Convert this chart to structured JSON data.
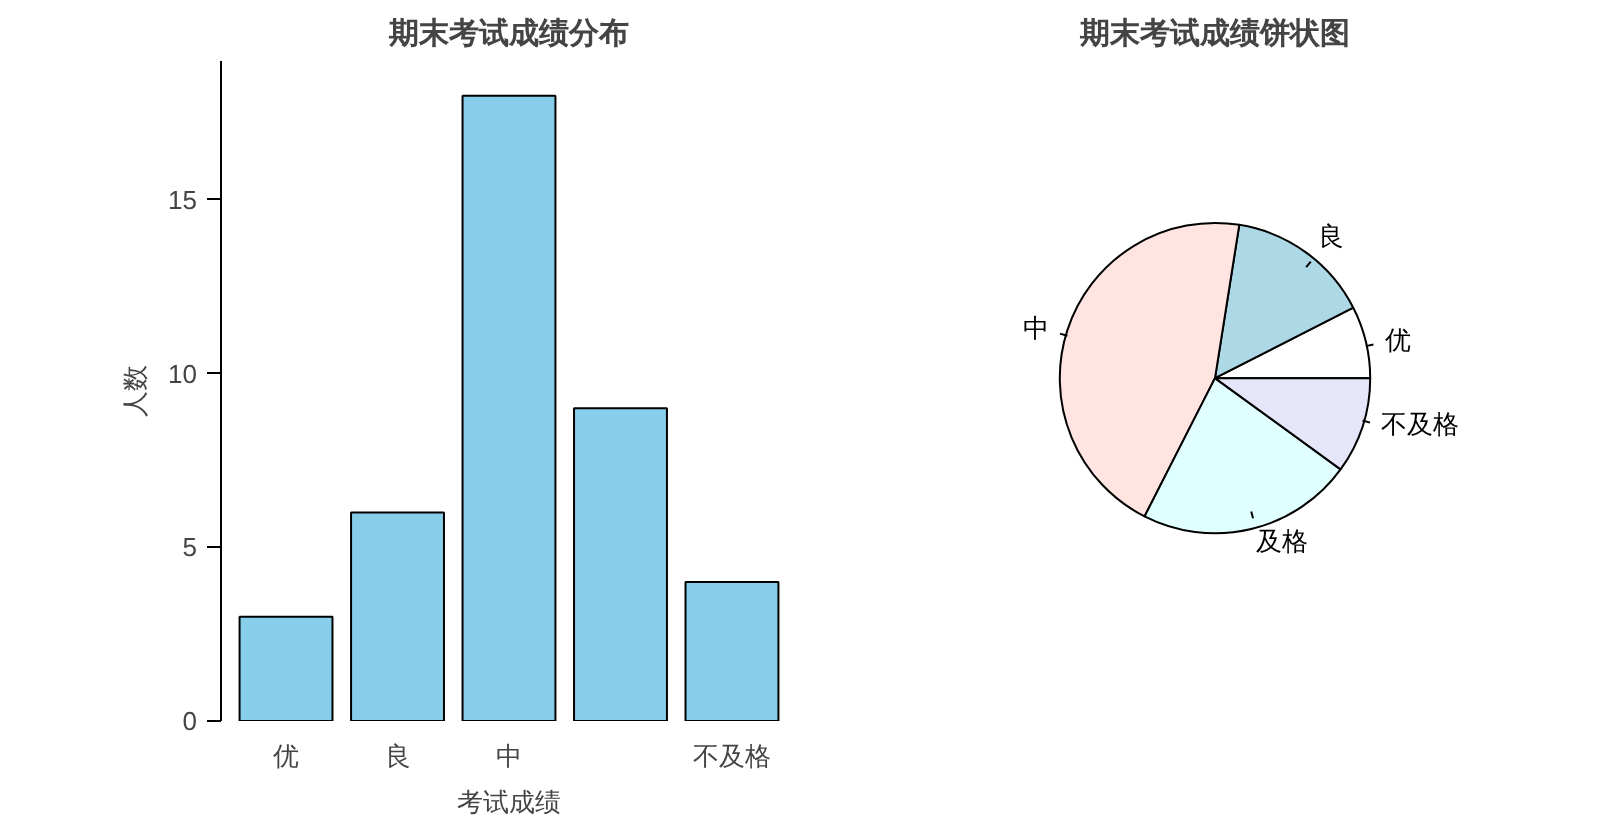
{
  "chart_data": [
    {
      "type": "bar",
      "title": "期末考试成绩分布",
      "xlabel": "考试成绩",
      "ylabel": "人数",
      "categories": [
        "优",
        "良",
        "中",
        null,
        "不及格"
      ],
      "values": [
        3,
        6,
        18,
        9,
        4
      ],
      "color": "#87ceeb",
      "ylim": [
        0,
        19
      ],
      "yticks": [
        0,
        5,
        10,
        15
      ]
    },
    {
      "type": "pie",
      "title": "期末考试成绩饼状图",
      "categories": [
        "优",
        "良",
        "中",
        "及格",
        "不及格"
      ],
      "values": [
        7.5,
        15,
        45,
        22.5,
        10
      ],
      "colors": [
        "#ffffff",
        "#add8e6",
        "#ffe4e1",
        "#e0ffff",
        "#e6e6fa"
      ]
    }
  ]
}
